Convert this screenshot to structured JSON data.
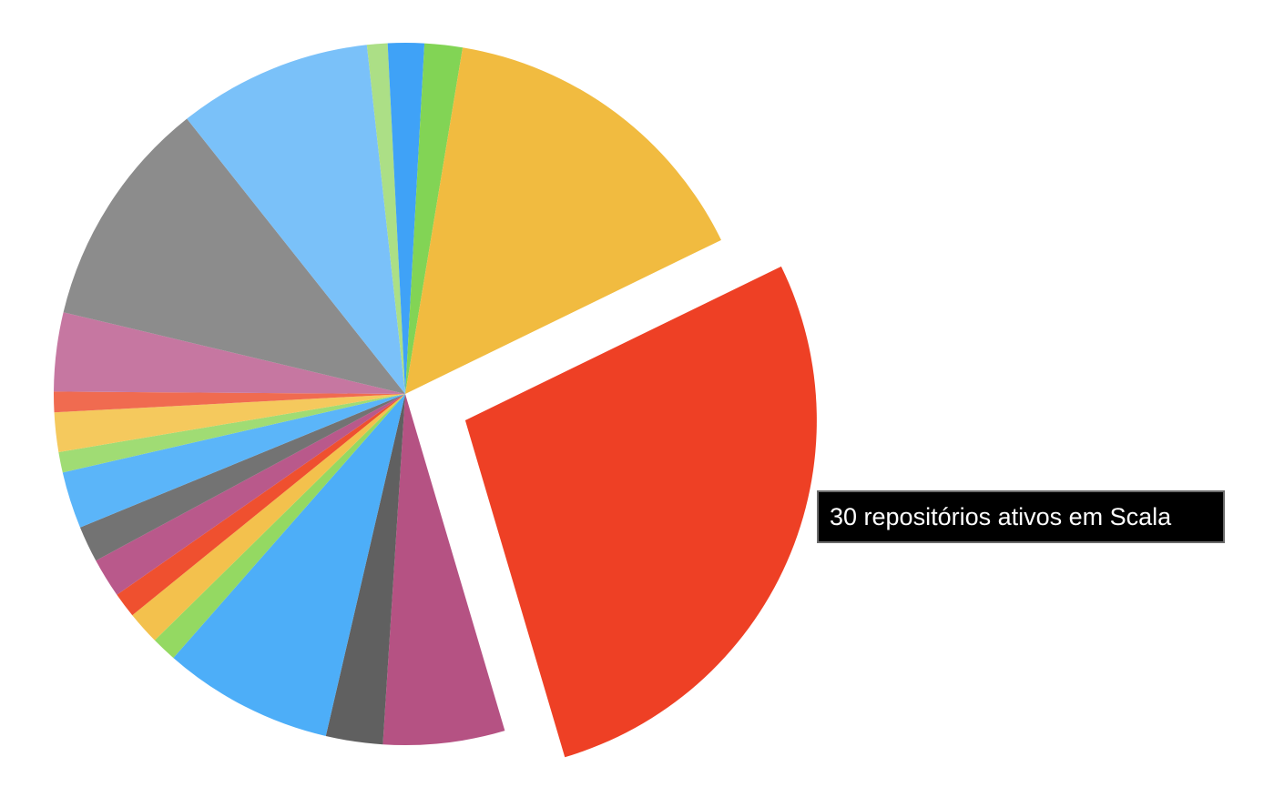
{
  "chart_data": {
    "type": "pie",
    "title": "",
    "values": [
      1.2,
      2.4,
      20.9,
      38.1,
      7.7,
      3.6,
      10.8,
      1.6,
      2.1,
      1.6,
      2.5,
      2.3,
      3.6,
      1.3,
      2.5,
      1.3,
      5.0,
      14.6,
      12.3,
      1.3,
      1.1
    ],
    "colors": [
      "#3fa2f7",
      "#82d455",
      "#f1bb40",
      "#ee4025",
      "#b55283",
      "#606060",
      "#4daef8",
      "#94d962",
      "#f3c14d",
      "#ef502f",
      "#b9598b",
      "#737373",
      "#5bb5f9",
      "#a0dc74",
      "#f5c95d",
      "#f06b50",
      "#c677a1",
      "#8c8c8c",
      "#7ac1f9",
      "#acdf86"
    ],
    "highlighted_index": 3,
    "tooltip": "30 repositórios ativos em Scala"
  }
}
